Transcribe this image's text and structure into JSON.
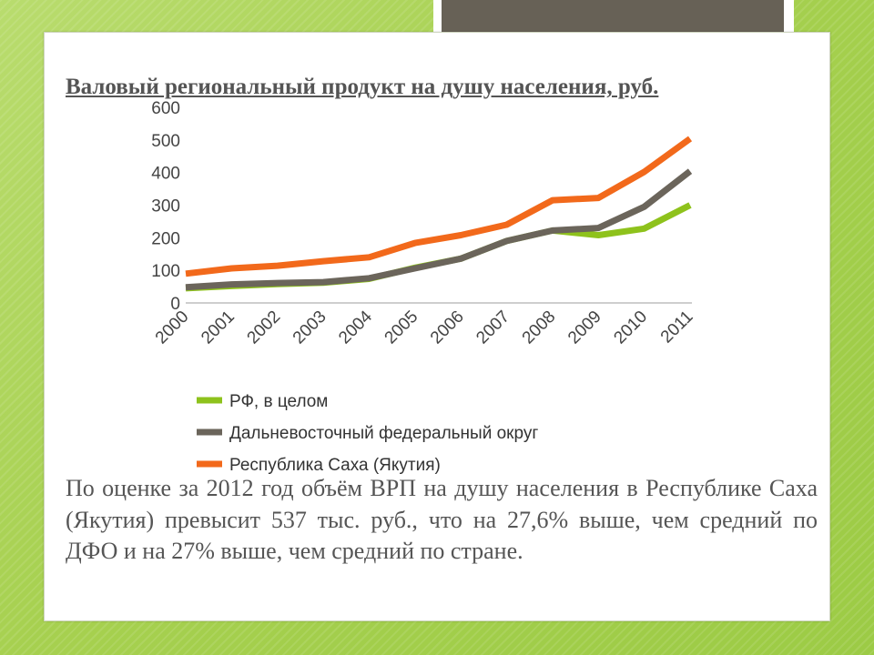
{
  "slide": {
    "paragraph": "По оценке за 2012 год объём ВРП на душу населения в Республике Саха (Якутия) превысит 537 тыс. руб., что на 27,6% выше, чем средний по ДФО и на 27% выше, чем средний по стране."
  },
  "colors": {
    "background": "#a6d04f",
    "deco": "#676156"
  },
  "chart_data": {
    "type": "line",
    "title": "Валовый региональный продукт на душу населения, руб.",
    "categories": [
      "2000",
      "2001",
      "2002",
      "2003",
      "2004",
      "2005",
      "2006",
      "2007",
      "2008",
      "2009",
      "2010",
      "2011"
    ],
    "ylim": [
      0,
      600
    ],
    "yticks": [
      "0",
      "100",
      "200",
      "300",
      "400",
      "500",
      "600"
    ],
    "grid": false,
    "legend_position": "bottom",
    "series": [
      {
        "name": "РФ, в целом",
        "color": "#8ec21c",
        "values": [
          45,
          52,
          58,
          62,
          74,
          108,
          136,
          190,
          222,
          208,
          228,
          300
        ]
      },
      {
        "name": "Дальневосточный федеральный округ",
        "color": "#6b655b",
        "values": [
          48,
          57,
          61,
          64,
          76,
          106,
          136,
          190,
          222,
          230,
          295,
          404
        ]
      },
      {
        "name": "Республика Саха (Якутия)",
        "color": "#f2691b",
        "values": [
          90,
          106,
          114,
          128,
          140,
          184,
          208,
          240,
          315,
          322,
          402,
          504
        ]
      }
    ]
  }
}
